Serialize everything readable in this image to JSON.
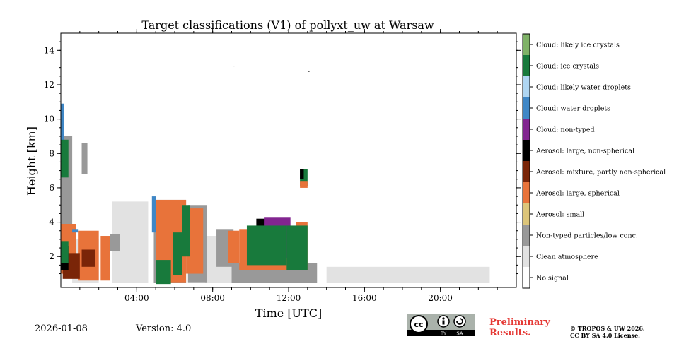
{
  "footer": {
    "date": "2026-01-08",
    "version": "Version: 4.0",
    "preliminary_line1": "Preliminary",
    "preliminary_line2": "Results.",
    "copyright_line1": "© TROPOS & UW 2026.",
    "copyright_line2": "CC BY SA 4.0 License.",
    "license_badge": {
      "cc": "cc",
      "by": "BY",
      "sa": "SA"
    }
  },
  "chart_data": {
    "type": "heatmap",
    "title": "Target classifications (V1) of pollyxt_uw at Warsaw",
    "xlabel": "Time [UTC]",
    "ylabel": "Height [km]",
    "xlim": [
      0,
      24
    ],
    "ylim": [
      0.2,
      15
    ],
    "x_ticks": [
      {
        "value": 4,
        "label": "04:00"
      },
      {
        "value": 8,
        "label": "08:00"
      },
      {
        "value": 12,
        "label": "12:00"
      },
      {
        "value": 16,
        "label": "16:00"
      },
      {
        "value": 20,
        "label": "20:00"
      }
    ],
    "y_ticks": [
      {
        "value": 2,
        "label": "2"
      },
      {
        "value": 4,
        "label": "4"
      },
      {
        "value": 6,
        "label": "6"
      },
      {
        "value": 8,
        "label": "8"
      },
      {
        "value": 10,
        "label": "10"
      },
      {
        "value": 12,
        "label": "12"
      },
      {
        "value": 14,
        "label": "14"
      }
    ],
    "classes": [
      {
        "id": 0,
        "name": "No signal",
        "color": "#ffffff"
      },
      {
        "id": 1,
        "name": "Clean atmosphere",
        "color": "#e2e2e2"
      },
      {
        "id": 2,
        "name": "Non-typed particles/low conc.",
        "color": "#999999"
      },
      {
        "id": 3,
        "name": "Aerosol: small",
        "color": "#dcc57a"
      },
      {
        "id": 4,
        "name": "Aerosol: large, spherical",
        "color": "#e8733a"
      },
      {
        "id": 5,
        "name": "Aerosol: mixture, partly non-spherical",
        "color": "#7a2508"
      },
      {
        "id": 6,
        "name": "Aerosol: large, non-spherical",
        "color": "#000000"
      },
      {
        "id": 7,
        "name": "Cloud: non-typed",
        "color": "#822590"
      },
      {
        "id": 8,
        "name": "Cloud: water droplets",
        "color": "#3f87c6"
      },
      {
        "id": 9,
        "name": "Cloud: likely water droplets",
        "color": "#afd6f2"
      },
      {
        "id": 10,
        "name": "Cloud: ice crystals",
        "color": "#187a3c"
      },
      {
        "id": 11,
        "name": "Cloud: likely ice crystals",
        "color": "#7fb267"
      }
    ],
    "regions": [
      {
        "class": 1,
        "t": [
          0.0,
          24.0
        ],
        "h": [
          0.2,
          0.2
        ]
      },
      {
        "class": 1,
        "t": [
          14.0,
          22.6
        ],
        "h": [
          0.45,
          1.4
        ]
      },
      {
        "class": 1,
        "t": [
          2.7,
          4.6
        ],
        "h": [
          0.45,
          5.2
        ]
      },
      {
        "class": 1,
        "t": [
          0.6,
          2.0
        ],
        "h": [
          0.45,
          3.0
        ]
      },
      {
        "class": 1,
        "t": [
          7.6,
          9.0
        ],
        "h": [
          0.45,
          3.2
        ]
      },
      {
        "class": 2,
        "t": [
          0.0,
          0.6
        ],
        "h": [
          1.0,
          9.0
        ]
      },
      {
        "class": 2,
        "t": [
          1.1,
          1.4
        ],
        "h": [
          6.8,
          8.6
        ]
      },
      {
        "class": 2,
        "t": [
          2.6,
          3.1
        ],
        "h": [
          2.3,
          3.3
        ]
      },
      {
        "class": 2,
        "t": [
          4.9,
          6.6
        ],
        "h": [
          0.45,
          5.3
        ]
      },
      {
        "class": 2,
        "t": [
          6.7,
          7.7
        ],
        "h": [
          0.5,
          5.0
        ]
      },
      {
        "class": 2,
        "t": [
          9.0,
          13.5
        ],
        "h": [
          0.45,
          1.6
        ]
      },
      {
        "class": 2,
        "t": [
          8.2,
          9.1
        ],
        "h": [
          1.4,
          3.6
        ]
      },
      {
        "class": 4,
        "t": [
          0.0,
          0.8
        ],
        "h": [
          1.0,
          3.9
        ]
      },
      {
        "class": 4,
        "t": [
          0.9,
          2.0
        ],
        "h": [
          0.6,
          3.5
        ]
      },
      {
        "class": 4,
        "t": [
          2.1,
          2.6
        ],
        "h": [
          0.6,
          3.2
        ]
      },
      {
        "class": 4,
        "t": [
          5.0,
          6.6
        ],
        "h": [
          0.5,
          5.3
        ]
      },
      {
        "class": 4,
        "t": [
          6.6,
          7.5
        ],
        "h": [
          1.0,
          4.8
        ]
      },
      {
        "class": 4,
        "t": [
          8.8,
          9.4
        ],
        "h": [
          1.6,
          3.5
        ]
      },
      {
        "class": 4,
        "t": [
          9.4,
          12.4
        ],
        "h": [
          1.2,
          3.6
        ]
      },
      {
        "class": 4,
        "t": [
          12.4,
          13.0
        ],
        "h": [
          1.2,
          4.0
        ]
      },
      {
        "class": 5,
        "t": [
          0.1,
          1.0
        ],
        "h": [
          0.7,
          2.2
        ]
      },
      {
        "class": 5,
        "t": [
          1.1,
          1.8
        ],
        "h": [
          1.4,
          2.4
        ]
      },
      {
        "class": 6,
        "t": [
          10.3,
          11.9
        ],
        "h": [
          2.2,
          4.2
        ]
      },
      {
        "class": 6,
        "t": [
          0.0,
          0.4
        ],
        "h": [
          1.2,
          2.6
        ]
      },
      {
        "class": 6,
        "t": [
          6.3,
          6.5
        ],
        "h": [
          2.3,
          2.9
        ]
      },
      {
        "class": 7,
        "t": [
          10.7,
          12.1
        ],
        "h": [
          1.9,
          4.3
        ]
      },
      {
        "class": 8,
        "t": [
          0.0,
          0.15
        ],
        "h": [
          7.6,
          10.9
        ]
      },
      {
        "class": 8,
        "t": [
          4.8,
          5.0
        ],
        "h": [
          3.4,
          5.5
        ]
      },
      {
        "class": 10,
        "t": [
          0.0,
          0.4
        ],
        "h": [
          6.6,
          8.8
        ]
      },
      {
        "class": 10,
        "t": [
          0.0,
          0.4
        ],
        "h": [
          1.6,
          2.9
        ]
      },
      {
        "class": 10,
        "t": [
          5.0,
          5.8
        ],
        "h": [
          0.4,
          1.8
        ]
      },
      {
        "class": 10,
        "t": [
          6.4,
          6.8
        ],
        "h": [
          2.0,
          5.0
        ]
      },
      {
        "class": 10,
        "t": [
          5.9,
          6.4
        ],
        "h": [
          0.9,
          3.4
        ]
      },
      {
        "class": 10,
        "t": [
          9.8,
          11.9
        ],
        "h": [
          1.5,
          3.8
        ]
      },
      {
        "class": 10,
        "t": [
          11.9,
          13.0
        ],
        "h": [
          1.2,
          3.8
        ]
      },
      {
        "class": 10,
        "t": [
          12.6,
          13.0
        ],
        "h": [
          6.1,
          7.1
        ]
      },
      {
        "class": 6,
        "t": [
          12.6,
          12.8
        ],
        "h": [
          6.5,
          7.1
        ]
      },
      {
        "class": 4,
        "t": [
          12.6,
          13.0
        ],
        "h": [
          6.0,
          6.4
        ]
      },
      {
        "class": 8,
        "t": [
          0.6,
          0.9
        ],
        "h": [
          3.4,
          3.6
        ]
      },
      {
        "class": 1,
        "t": [
          9.1,
          9.15
        ],
        "h": [
          13.05,
          13.1
        ]
      },
      {
        "class": 6,
        "t": [
          13.05,
          13.1
        ],
        "h": [
          12.75,
          12.8
        ]
      }
    ]
  }
}
